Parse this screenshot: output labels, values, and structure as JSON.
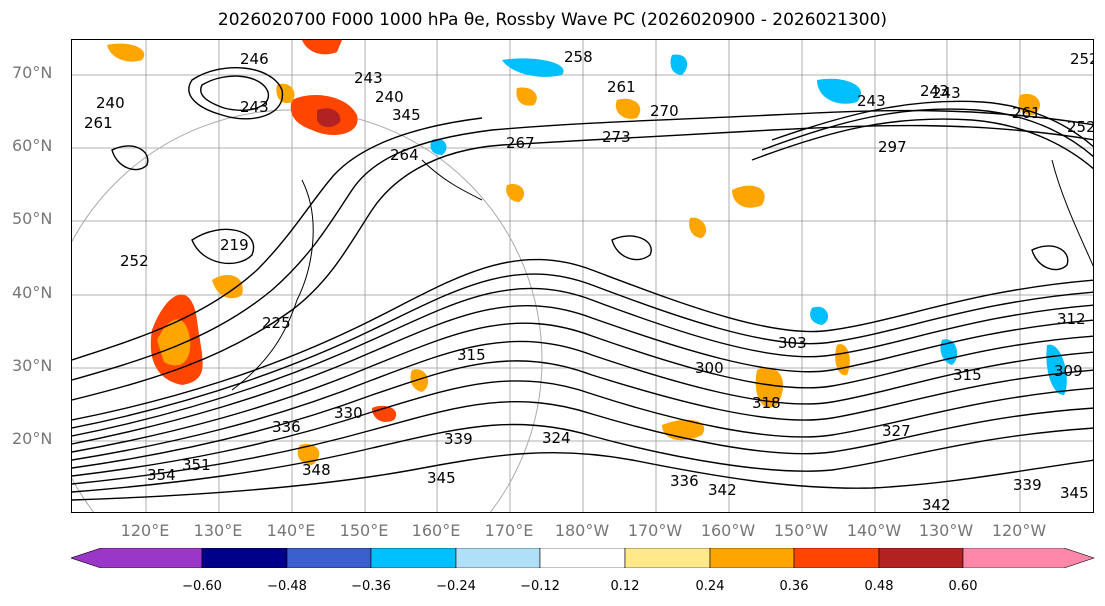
{
  "title": "2026020700 F000 1000 hPa θe, Rossby Wave PC (2026020900 - 2026021300)",
  "lat_labels": [
    "70°N",
    "60°N",
    "50°N",
    "40°N",
    "30°N",
    "20°N"
  ],
  "lon_labels": [
    "120°E",
    "130°E",
    "140°E",
    "150°E",
    "160°E",
    "170°E",
    "180°W",
    "170°W",
    "160°W",
    "150°W",
    "140°W",
    "130°W",
    "120°W"
  ],
  "contour_labels": [
    "258",
    "243",
    "246",
    "243",
    "240",
    "261",
    "240",
    "243",
    "261",
    "252",
    "219",
    "225",
    "252",
    "264",
    "267",
    "273",
    "270",
    "261",
    "243",
    "243",
    "252",
    "297",
    "315",
    "300",
    "303",
    "312",
    "315",
    "309",
    "318",
    "324",
    "327",
    "330",
    "336",
    "339",
    "345",
    "348",
    "351",
    "354",
    "342",
    "339",
    "342",
    "345",
    "336",
    "345"
  ],
  "colorbar": {
    "ticks": [
      "−0.60",
      "−0.48",
      "−0.36",
      "−0.24",
      "−0.12",
      "0.12",
      "0.24",
      "0.36",
      "0.48",
      "0.60"
    ],
    "colors": [
      "#9a36c8",
      "#00008b",
      "#3a5fcd",
      "#00bfff",
      "#b0e0f8",
      "#ffffff",
      "#ffe98a",
      "#ffa500",
      "#ff4500",
      "#b22222",
      "#ff88aa"
    ]
  }
}
